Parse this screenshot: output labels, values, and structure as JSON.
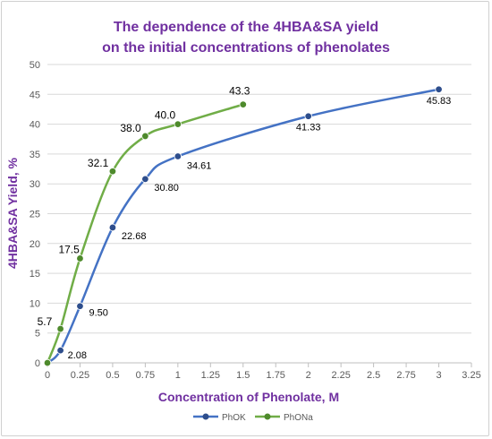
{
  "chart_data": {
    "type": "line",
    "title_line1": "The dependence of the 4HBA&SA yield",
    "title_line2": "on the initial concentrations of phenolates",
    "xlabel": "Concentration of Phenolate, M",
    "ylabel": "4HBA&SA Yield, %",
    "xlim": [
      0,
      3.25
    ],
    "ylim": [
      0,
      50
    ],
    "xticks": [
      "0",
      "0.25",
      "0.5",
      "0.75",
      "1",
      "1.25",
      "1.5",
      "1.75",
      "2",
      "2.25",
      "2.5",
      "2.75",
      "3",
      "3.25"
    ],
    "yticks": [
      "0",
      "5",
      "10",
      "15",
      "20",
      "25",
      "30",
      "35",
      "40",
      "45",
      "50"
    ],
    "grid": "horizontal",
    "legend_position": "bottom",
    "series": [
      {
        "name": "PhOK",
        "color": "#4472C4",
        "marker_color": "#2E4E8C",
        "x": [
          0,
          0.1,
          0.25,
          0.5,
          0.75,
          1,
          2,
          3
        ],
        "y": [
          0,
          2.08,
          9.5,
          22.68,
          30.8,
          34.61,
          41.33,
          45.83
        ],
        "labels": [
          "",
          "2.08",
          "9.50",
          "22.68",
          "30.80",
          "34.61",
          "41.33",
          "45.83"
        ]
      },
      {
        "name": "PhONa",
        "color": "#70AD47",
        "marker_color": "#4E8A2C",
        "x": [
          0,
          0.1,
          0.25,
          0.5,
          0.75,
          1,
          1.5
        ],
        "y": [
          0,
          5.7,
          17.5,
          32.1,
          38.0,
          40.0,
          43.3
        ],
        "labels": [
          "",
          "5.7",
          "17.5",
          "32.1",
          "38.0",
          "40.0",
          "43.3"
        ]
      }
    ],
    "colors": {
      "title": "#7030A0",
      "axis_title": "#7030A0"
    }
  }
}
